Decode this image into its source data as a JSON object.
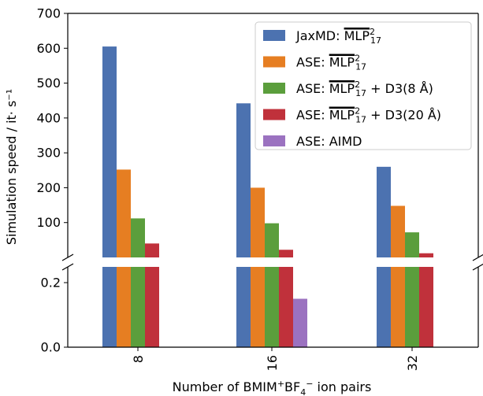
{
  "chart_data": {
    "type": "bar",
    "broken_axis": true,
    "xlabel_parts": [
      "Number of BMIM",
      "+",
      "BF",
      "4",
      "−",
      " ion pairs"
    ],
    "ylabel": "Simulation speed / it· s⁻¹",
    "categories": [
      "8",
      "16",
      "32"
    ],
    "upper_ylim": [
      0,
      700
    ],
    "upper_ticks": [
      "100",
      "200",
      "300",
      "400",
      "500",
      "600",
      "700"
    ],
    "lower_ylim": [
      0,
      0.25
    ],
    "lower_ticks": [
      "0.0",
      "0.2"
    ],
    "grid": false,
    "legend_position": "top-right",
    "series": [
      {
        "name": "JaxMD",
        "legend_label": "JaxMD: MLP²₁₇",
        "color": "#4c72b0",
        "values": [
          605,
          442,
          260
        ]
      },
      {
        "name": "ASE",
        "legend_label": "ASE: MLP²₁₇",
        "color": "#e67e22",
        "values": [
          252,
          200,
          148
        ]
      },
      {
        "name": "ASE + D3(8 Å)",
        "legend_label": "ASE: MLP²₁₇ + D3(8 Å)",
        "color": "#5b9e3c",
        "values": [
          112,
          98,
          72
        ]
      },
      {
        "name": "ASE + D3(20 Å)",
        "legend_label": "ASE: MLP²₁₇ + D3(20 Å)",
        "color": "#c0313b",
        "values": [
          40,
          22,
          12
        ]
      },
      {
        "name": "ASE: AIMD",
        "legend_label": "ASE: AIMD",
        "color": "#9b72c0",
        "values": [
          null,
          0.15,
          null
        ]
      }
    ],
    "legend": [
      {
        "prefix": "JaxMD: ",
        "mlp": "MLP",
        "sup": "2",
        "sub": "17",
        "suffix": ""
      },
      {
        "prefix": "ASE: ",
        "mlp": "MLP",
        "sup": "2",
        "sub": "17",
        "suffix": ""
      },
      {
        "prefix": "ASE: ",
        "mlp": "MLP",
        "sup": "2",
        "sub": "17",
        "suffix": " + D3(8 Å)"
      },
      {
        "prefix": "ASE: ",
        "mlp": "MLP",
        "sup": "2",
        "sub": "17",
        "suffix": " + D3(20 Å)"
      },
      {
        "prefix": "ASE: AIMD",
        "mlp": "",
        "sup": "",
        "sub": "",
        "suffix": ""
      }
    ]
  }
}
